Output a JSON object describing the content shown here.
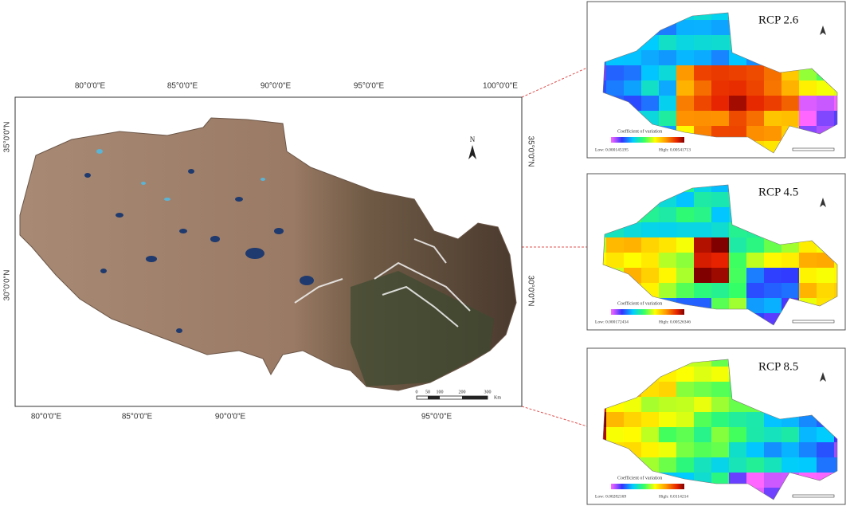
{
  "main_map": {
    "top_labels": [
      "80°0'0\"E",
      "85°0'0\"E",
      "90°0'0\"E",
      "95°0'0\"E",
      "100°0'0\"E"
    ],
    "bottom_labels": [
      "80°0'0\"E",
      "85°0'0\"E",
      "90°0'0\"E",
      "95°0'0\"E"
    ],
    "left_labels": [
      "35°0'0\"N",
      "30°0'0\"N"
    ],
    "right_labels": [
      "35°0'0\"N",
      "30°0'0\"N"
    ],
    "north": "N",
    "scale_bar": {
      "ticks": [
        "0",
        "50",
        "100",
        "200",
        "300"
      ],
      "unit": "Km"
    }
  },
  "panels": [
    {
      "title": "RCP 2.6",
      "legend_title": "Coefficient of variation",
      "low": "Low: 0.000145195",
      "high": "High: 0.00541713"
    },
    {
      "title": "RCP 4.5",
      "legend_title": "Coefficient of variation",
      "low": "Low: 0.000172434",
      "high": "High: 0.00526346"
    },
    {
      "title": "RCP 8.5",
      "legend_title": "Coefficient of variation",
      "low": "Low: 0.00282169",
      "high": "High: 0.0114214"
    }
  ]
}
